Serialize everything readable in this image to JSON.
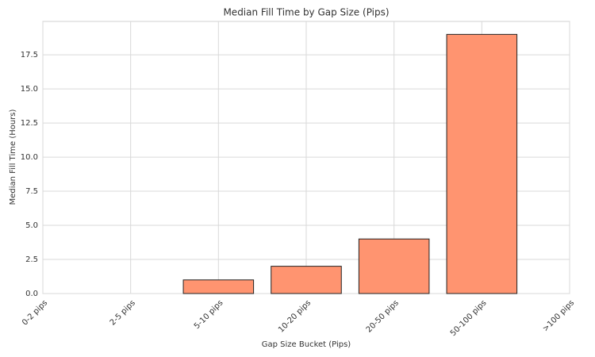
{
  "chart_data": {
    "type": "bar",
    "title": "Median Fill Time by Gap Size (Pips)",
    "x_label": "Gap Size Bucket (Pips)",
    "y_label": "Median Fill Time (Hours)",
    "categories": [
      "0-2 pips",
      "2-5 pips",
      "5-10 pips",
      "10-20 pips",
      "20-50 pips",
      "50-100 pips",
      ">100 pips"
    ],
    "values": [
      null,
      0,
      1,
      2,
      4,
      19,
      null
    ],
    "color": "#ff9470",
    "ylim": [
      0,
      19.95
    ],
    "yticks": [
      {
        "value": 0,
        "label": "0.0"
      },
      2.5,
      {
        "value": 5,
        "label": "5.0"
      },
      7.5,
      {
        "value": 10,
        "label": "10.0"
      },
      12.5,
      {
        "value": 15,
        "label": "15.0"
      },
      17.5
    ],
    "grid": true
  }
}
